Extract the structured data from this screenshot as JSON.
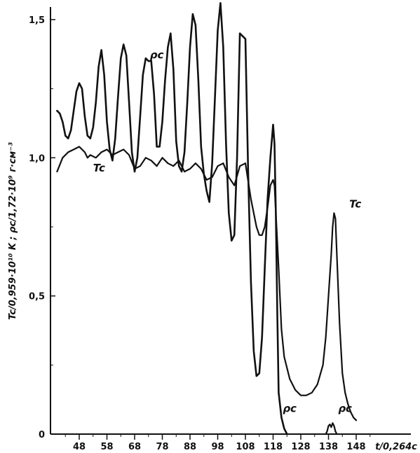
{
  "chart_data": {
    "type": "line",
    "title": "",
    "xlabel": "t/0,264c",
    "ylabel": "Tc/0,959·10¹⁰ K ; ρc/1,72·10⁹ г·см⁻³",
    "xlim": [
      40,
      154
    ],
    "ylim": [
      0,
      1.55
    ],
    "x_ticks": [
      48,
      58,
      68,
      78,
      88,
      98,
      108,
      118,
      128,
      138,
      148
    ],
    "y_ticks": [
      {
        "value": 0,
        "label": "0"
      },
      {
        "value": 0.5,
        "label": "0,5"
      },
      {
        "value": 1.0,
        "label": "1,0"
      },
      {
        "value": 1.5,
        "label": "1,5"
      }
    ],
    "grid": false,
    "series": [
      {
        "name": "ρc",
        "label_at": [
          73.5,
          1.36
        ],
        "label_at2": [
          121.5,
          0.08
        ],
        "points": [
          [
            40,
            1.17
          ],
          [
            41,
            1.16
          ],
          [
            42,
            1.13
          ],
          [
            43,
            1.08
          ],
          [
            44,
            1.07
          ],
          [
            45,
            1.1
          ],
          [
            46,
            1.17
          ],
          [
            47,
            1.24
          ],
          [
            48,
            1.27
          ],
          [
            49,
            1.25
          ],
          [
            50,
            1.15
          ],
          [
            51,
            1.08
          ],
          [
            52,
            1.07
          ],
          [
            53,
            1.11
          ],
          [
            54,
            1.2
          ],
          [
            55,
            1.33
          ],
          [
            56,
            1.39
          ],
          [
            57,
            1.3
          ],
          [
            58,
            1.13
          ],
          [
            59,
            1.03
          ],
          [
            60,
            0.99
          ],
          [
            61,
            1.07
          ],
          [
            62,
            1.22
          ],
          [
            63,
            1.36
          ],
          [
            64,
            1.41
          ],
          [
            65,
            1.37
          ],
          [
            66,
            1.2
          ],
          [
            67,
            1.02
          ],
          [
            68,
            0.95
          ],
          [
            69,
            1.0
          ],
          [
            70,
            1.15
          ],
          [
            71,
            1.3
          ],
          [
            72,
            1.36
          ],
          [
            73,
            1.35
          ],
          [
            74,
            1.35
          ],
          [
            75,
            1.23
          ],
          [
            76,
            1.04
          ],
          [
            77,
            1.04
          ],
          [
            78,
            1.13
          ],
          [
            79,
            1.28
          ],
          [
            80,
            1.4
          ],
          [
            81,
            1.45
          ],
          [
            82,
            1.32
          ],
          [
            83,
            1.06
          ],
          [
            84,
            0.97
          ],
          [
            85,
            0.95
          ],
          [
            86,
            1.02
          ],
          [
            87,
            1.2
          ],
          [
            88,
            1.4
          ],
          [
            89,
            1.52
          ],
          [
            90,
            1.48
          ],
          [
            91,
            1.28
          ],
          [
            92,
            1.04
          ],
          [
            93,
            0.94
          ],
          [
            94,
            0.88
          ],
          [
            95,
            0.84
          ],
          [
            96,
            0.98
          ],
          [
            97,
            1.22
          ],
          [
            98,
            1.46
          ],
          [
            99,
            1.56
          ],
          [
            100,
            1.4
          ],
          [
            101,
            1.05
          ],
          [
            102,
            0.8
          ],
          [
            103,
            0.7
          ],
          [
            104,
            0.72
          ],
          [
            105,
            1.0
          ],
          [
            106,
            1.45
          ],
          [
            107,
            1.44
          ],
          [
            108,
            1.43
          ],
          [
            109,
            0.95
          ],
          [
            110,
            0.55
          ],
          [
            111,
            0.3
          ],
          [
            112,
            0.21
          ],
          [
            113,
            0.22
          ],
          [
            114,
            0.35
          ],
          [
            115,
            0.6
          ],
          [
            116,
            0.85
          ],
          [
            117,
            1.0
          ],
          [
            118,
            1.12
          ],
          [
            118.5,
            1.05
          ],
          [
            119,
            0.8
          ],
          [
            119.5,
            0.45
          ],
          [
            120,
            0.15
          ],
          [
            121,
            0.06
          ],
          [
            122,
            0.02
          ],
          [
            123,
            0.0
          ]
        ]
      },
      {
        "name": "Tc",
        "label_at": [
          53,
          0.95
        ],
        "label_at2": [
          145.5,
          0.82
        ],
        "points": [
          [
            40,
            0.95
          ],
          [
            42,
            1.0
          ],
          [
            44,
            1.02
          ],
          [
            46,
            1.03
          ],
          [
            48,
            1.04
          ],
          [
            50,
            1.02
          ],
          [
            51,
            1.0
          ],
          [
            52,
            1.01
          ],
          [
            54,
            1.0
          ],
          [
            56,
            1.02
          ],
          [
            58,
            1.03
          ],
          [
            60,
            1.01
          ],
          [
            62,
            1.02
          ],
          [
            64,
            1.03
          ],
          [
            66,
            1.01
          ],
          [
            68,
            0.96
          ],
          [
            70,
            0.97
          ],
          [
            72,
            1.0
          ],
          [
            74,
            0.99
          ],
          [
            76,
            0.97
          ],
          [
            78,
            1.0
          ],
          [
            80,
            0.98
          ],
          [
            82,
            0.97
          ],
          [
            84,
            0.99
          ],
          [
            86,
            0.95
          ],
          [
            88,
            0.96
          ],
          [
            90,
            0.98
          ],
          [
            92,
            0.96
          ],
          [
            94,
            0.92
          ],
          [
            96,
            0.93
          ],
          [
            98,
            0.97
          ],
          [
            100,
            0.98
          ],
          [
            102,
            0.93
          ],
          [
            104,
            0.9
          ],
          [
            106,
            0.97
          ],
          [
            108,
            0.98
          ],
          [
            110,
            0.85
          ],
          [
            112,
            0.75
          ],
          [
            113,
            0.72
          ],
          [
            114,
            0.72
          ],
          [
            115,
            0.75
          ],
          [
            116,
            0.82
          ],
          [
            117,
            0.9
          ],
          [
            118,
            0.92
          ],
          [
            118.5,
            0.9
          ],
          [
            119,
            0.8
          ],
          [
            120,
            0.6
          ],
          [
            121,
            0.38
          ],
          [
            122,
            0.28
          ],
          [
            124,
            0.2
          ],
          [
            126,
            0.16
          ],
          [
            128,
            0.14
          ],
          [
            130,
            0.14
          ],
          [
            132,
            0.15
          ],
          [
            134,
            0.18
          ],
          [
            136,
            0.25
          ],
          [
            137,
            0.35
          ],
          [
            138,
            0.5
          ],
          [
            139,
            0.65
          ],
          [
            139.5,
            0.75
          ],
          [
            140,
            0.8
          ],
          [
            140.5,
            0.78
          ],
          [
            141,
            0.65
          ],
          [
            142,
            0.4
          ],
          [
            143,
            0.22
          ],
          [
            144,
            0.15
          ],
          [
            145,
            0.11
          ],
          [
            146,
            0.08
          ],
          [
            147,
            0.06
          ],
          [
            148,
            0.05
          ]
        ]
      },
      {
        "name": "ρc",
        "points": [
          [
            137,
            0.0
          ],
          [
            137.5,
            0.01
          ],
          [
            138,
            0.03
          ],
          [
            138.5,
            0.035
          ],
          [
            139,
            0.025
          ],
          [
            139.5,
            0.04
          ],
          [
            140,
            0.03
          ],
          [
            140.5,
            0.01
          ],
          [
            141,
            0.0
          ]
        ]
      }
    ]
  }
}
